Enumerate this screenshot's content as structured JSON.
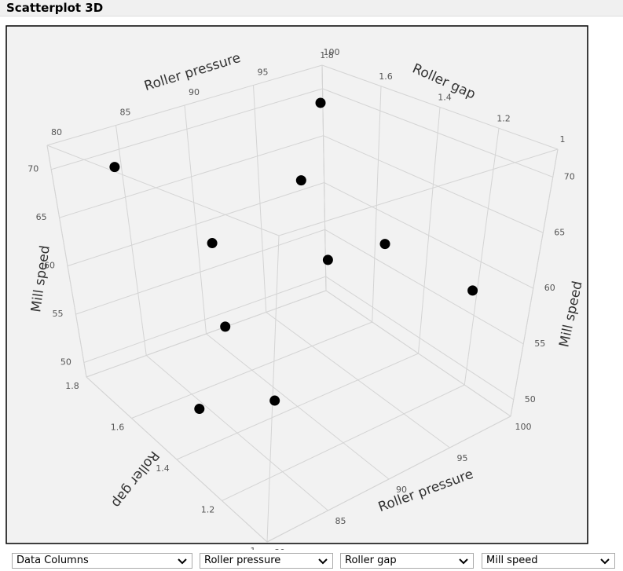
{
  "header": {
    "title": "Scatterplot 3D"
  },
  "chart_data": {
    "type": "scatter3d",
    "x_label": "Roller pressure",
    "y_label": "Roller gap",
    "z_label": "Mill speed",
    "x": [
      83,
      99,
      95,
      85,
      94,
      93,
      96,
      85,
      85,
      82
    ],
    "y": [
      1.72,
      1.76,
      1.64,
      1.48,
      1.28,
      1.44,
      1.04,
      1.44,
      1.24,
      1.4
    ],
    "z": [
      70,
      69.4,
      64.6,
      64.8,
      63.4,
      60.3,
      61.2,
      57.6,
      54,
      52.1
    ],
    "xlim": [
      80,
      100
    ],
    "ylim": [
      1,
      1.8
    ],
    "zlim": [
      48.5,
      72.5
    ],
    "xticks": [
      80,
      85,
      90,
      95,
      100
    ],
    "yticks": [
      1,
      1.2,
      1.4,
      1.6,
      1.8
    ],
    "zticks": [
      50,
      55,
      60,
      65,
      70
    ],
    "color": "#000000",
    "grid": true
  },
  "controls": {
    "dropdowns": [
      "Data Columns",
      "Roller pressure",
      "Roller gap",
      "Mill speed"
    ]
  }
}
